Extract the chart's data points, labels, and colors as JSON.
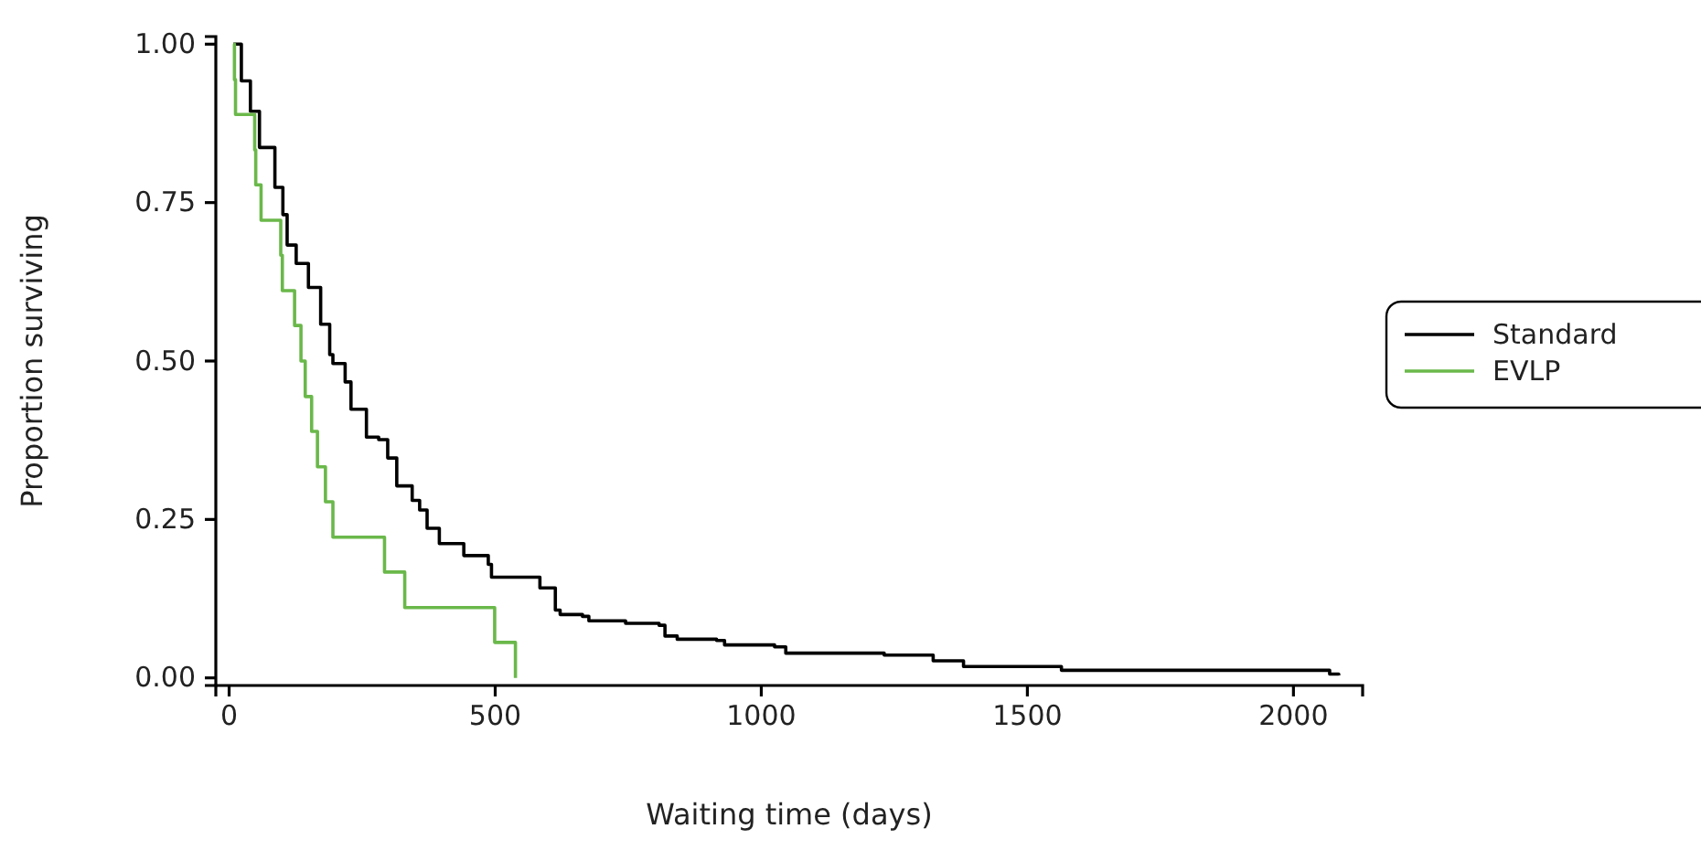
{
  "chart_data": {
    "type": "step",
    "xlabel": "Waiting time (days)",
    "ylabel": "Proportion surviving",
    "xlim": [
      -25,
      2130
    ],
    "xticks": [
      0,
      500,
      1000,
      1500,
      2000
    ],
    "ylim": [
      -0.012,
      1.012
    ],
    "yticks": [
      {
        "value": 0,
        "label": "0.00"
      },
      {
        "value": 0.25,
        "label": "0.25"
      },
      {
        "value": 0.5,
        "label": "0.50"
      },
      {
        "value": 0.75,
        "label": "0.75"
      },
      {
        "value": 1,
        "label": "1.00"
      }
    ],
    "grid": false,
    "legend": "right",
    "marker": "none",
    "line_style": "solid",
    "series": [
      {
        "name": "Standard",
        "color": "#000000",
        "x": [
          8,
          23,
          40,
          57,
          86,
          101,
          109,
          126,
          149,
          172,
          189,
          195,
          218,
          229,
          258,
          281,
          298,
          315,
          344,
          358,
          372,
          395,
          441,
          487,
          493,
          544,
          584,
          613,
          622,
          664,
          676,
          745,
          808,
          819,
          842,
          916,
          931,
          1025,
          1046,
          1231,
          1323,
          1380,
          1564,
          2062,
          2068,
          2085
        ],
        "values": [
          1,
          0.942,
          0.894,
          0.837,
          0.774,
          0.731,
          0.683,
          0.654,
          0.616,
          0.558,
          0.51,
          0.496,
          0.467,
          0.424,
          0.38,
          0.376,
          0.347,
          0.303,
          0.28,
          0.265,
          0.236,
          0.212,
          0.193,
          0.179,
          0.159,
          0.159,
          0.142,
          0.107,
          0.1,
          0.097,
          0.09,
          0.086,
          0.083,
          0.066,
          0.061,
          0.059,
          0.052,
          0.049,
          0.039,
          0.036,
          0.027,
          0.018,
          0.012,
          0.012,
          0.006,
          0.004
        ]
      },
      {
        "name": "EVLP",
        "color": "#6ab84a",
        "x": [
          8,
          10,
          12,
          48,
          50,
          60,
          97,
          100,
          123,
          135,
          143,
          155,
          166,
          181,
          195,
          292,
          330,
          499,
          538
        ],
        "values": [
          1,
          0.944,
          0.889,
          0.833,
          0.778,
          0.722,
          0.667,
          0.611,
          0.556,
          0.5,
          0.444,
          0.389,
          0.333,
          0.278,
          0.222,
          0.167,
          0.111,
          0.056,
          0
        ]
      }
    ]
  }
}
